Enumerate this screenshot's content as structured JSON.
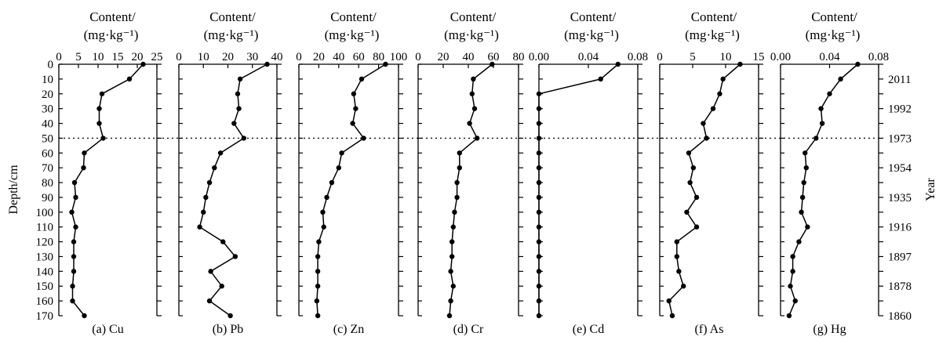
{
  "chart_data": {
    "type": "line",
    "depth_axis": {
      "label": "Depth/cm",
      "range": [
        0,
        170
      ],
      "ticks": [
        "0",
        "10",
        "20",
        "30",
        "40",
        "50",
        "60",
        "70",
        "80",
        "90",
        "100",
        "110",
        "120",
        "130",
        "140",
        "150",
        "160",
        "170"
      ]
    },
    "year_axis": {
      "label": "Year",
      "ticks": [
        {
          "depth": 10,
          "label": "2011"
        },
        {
          "depth": 30,
          "label": "1992"
        },
        {
          "depth": 50,
          "label": "1973"
        },
        {
          "depth": 70,
          "label": "1954"
        },
        {
          "depth": 90,
          "label": "1935"
        },
        {
          "depth": 110,
          "label": "1916"
        },
        {
          "depth": 130,
          "label": "1897"
        },
        {
          "depth": 150,
          "label": "1878"
        },
        {
          "depth": 170,
          "label": "1860"
        }
      ]
    },
    "dotted_line_depth": 50,
    "depths": [
      0,
      10,
      20,
      30,
      40,
      50,
      60,
      70,
      80,
      90,
      100,
      110,
      120,
      130,
      140,
      150,
      160,
      170
    ],
    "panels": [
      {
        "header_line1": "Content/",
        "header_line2": "(mg·kg⁻¹)",
        "caption": "(a) Cu",
        "xlim": [
          0,
          25
        ],
        "xticks": [
          "0",
          "5",
          "10",
          "15",
          "20",
          "25"
        ],
        "values": [
          21.5,
          18,
          11,
          10.3,
          10.3,
          11.3,
          6.5,
          6.3,
          4.0,
          4.3,
          3.3,
          4.3,
          3.8,
          3.8,
          3.8,
          3.5,
          3.5,
          6.5
        ]
      },
      {
        "header_line1": "Content/",
        "header_line2": "(mg·kg⁻¹)",
        "caption": "(b) Pb",
        "xlim": [
          0,
          40
        ],
        "xticks": [
          "0",
          "10",
          "20",
          "30",
          "40"
        ],
        "values": [
          36,
          25,
          24,
          24.5,
          22.5,
          26.5,
          17,
          14.5,
          12.5,
          11,
          10,
          8.5,
          18,
          23,
          13,
          17.5,
          12.5,
          21
        ]
      },
      {
        "header_line1": "Content/",
        "header_line2": "(mg·kg⁻¹)",
        "caption": "(c) Zn",
        "xlim": [
          0,
          100
        ],
        "xticks": [
          "0",
          "20",
          "40",
          "60",
          "80",
          "100"
        ],
        "values": [
          87,
          63,
          55,
          57,
          54,
          65,
          43,
          40,
          33,
          28,
          24,
          25,
          20,
          19,
          19,
          19,
          18,
          19
        ]
      },
      {
        "header_line1": "Content/",
        "header_line2": "(mg·kg⁻¹)",
        "caption": "(d) Cr",
        "xlim": [
          0,
          80
        ],
        "xticks": [
          "0",
          "20",
          "40",
          "60",
          "80"
        ],
        "values": [
          59,
          44,
          43,
          45,
          41,
          47,
          33,
          33,
          31,
          31,
          29,
          28,
          27,
          27,
          26,
          28,
          26,
          25
        ]
      },
      {
        "header_line1": "Content/",
        "header_line2": "(mg·kg⁻¹)",
        "caption": "(e) Cd",
        "xlim": [
          0,
          0.08
        ],
        "xticks": [
          "0.00",
          "0.04",
          "0.08"
        ],
        "values": [
          0.064,
          0.05,
          0.0,
          0.0,
          0.0,
          0.0,
          0.0,
          0.0,
          0.0,
          0.0,
          0.0,
          0.0,
          0.0,
          0.0,
          0.0,
          0.0,
          0.0,
          0.0
        ]
      },
      {
        "header_line1": "Content/",
        "header_line2": "(mg·kg⁻¹)",
        "caption": "(f) As",
        "xlim": [
          0,
          15
        ],
        "xticks": [
          "0",
          "5",
          "10",
          "15"
        ],
        "values": [
          12.2,
          9.6,
          9.1,
          8.1,
          6.6,
          7.1,
          4.4,
          5.1,
          4.6,
          5.6,
          4.1,
          5.6,
          2.6,
          2.6,
          2.9,
          3.6,
          1.4,
          1.9
        ]
      },
      {
        "header_line1": "Content/",
        "header_line2": "(mg·kg⁻¹)",
        "caption": "(g) Hg",
        "xlim": [
          0,
          0.08
        ],
        "xticks": [
          "0.00",
          "0.04",
          "0.08"
        ],
        "values": [
          0.063,
          0.049,
          0.04,
          0.033,
          0.034,
          0.029,
          0.02,
          0.021,
          0.019,
          0.018,
          0.017,
          0.022,
          0.015,
          0.01,
          0.01,
          0.008,
          0.012,
          0.007
        ]
      }
    ]
  }
}
